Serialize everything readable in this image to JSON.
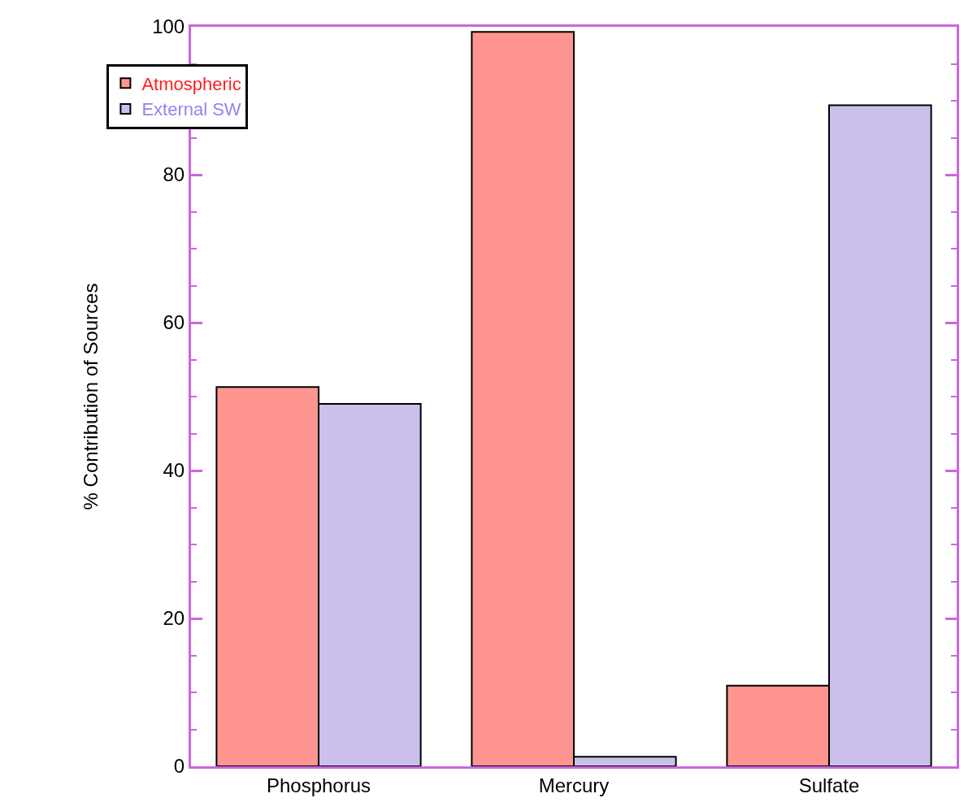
{
  "chart_data": {
    "type": "bar",
    "ylabel": "% Contribution of Sources",
    "categories": [
      "Phosphorus",
      "Mercury",
      "Sulfate"
    ],
    "series": [
      {
        "name": "Atmospheric",
        "color": "#ff9590",
        "values": [
          51.3,
          99.3,
          10.9
        ]
      },
      {
        "name": "External SW",
        "color": "#cbc0ec",
        "values": [
          49.0,
          1.3,
          89.4
        ]
      }
    ],
    "ylim": [
      0,
      100
    ],
    "yticks": [
      0,
      20,
      40,
      60,
      80,
      100
    ],
    "legend": "top left"
  }
}
